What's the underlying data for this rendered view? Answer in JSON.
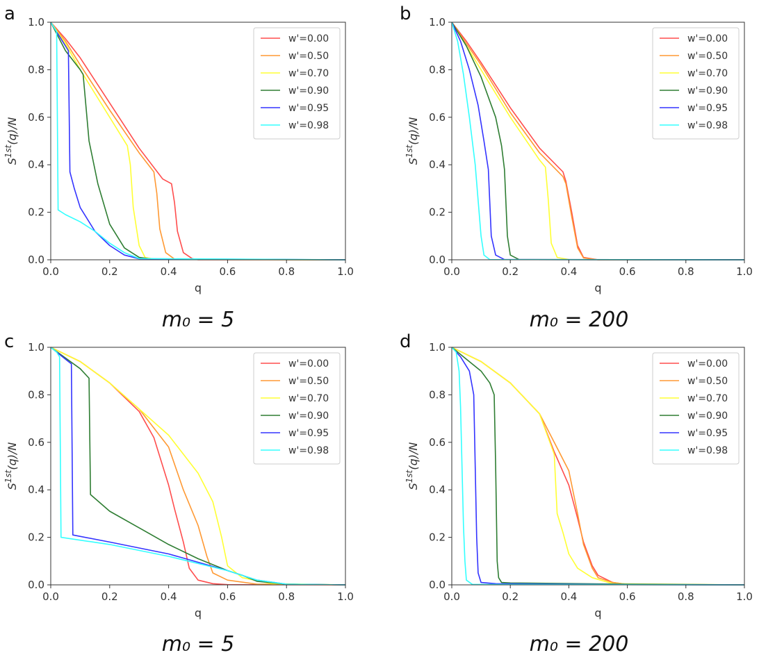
{
  "figure": {
    "legend_entries": [
      "w'=0.00",
      "w'=0.50",
      "w'=0.70",
      "w'=0.90",
      "w'=0.95",
      "w'=0.98"
    ],
    "series_colors": [
      "#ff4d4d",
      "#ff9933",
      "#ffff33",
      "#2e7d32",
      "#3333ff",
      "#33ffff"
    ]
  },
  "chart_data": [
    {
      "type": "line",
      "panel": "a",
      "caption": "m₀ = 5",
      "xlabel": "q",
      "ylabel": "S1st(q)/N",
      "xlim": [
        0,
        1.0
      ],
      "ylim": [
        0,
        1.0
      ],
      "xticks": [
        "0.0",
        "0.2",
        "0.4",
        "0.6",
        "0.8",
        "1.0"
      ],
      "yticks": [
        "0.0",
        "0.2",
        "0.4",
        "0.6",
        "0.8",
        "1.0"
      ],
      "legend_position": "top-right",
      "series": [
        {
          "name": "w'=0.00",
          "x": [
            0,
            0.05,
            0.1,
            0.2,
            0.3,
            0.38,
            0.41,
            0.42,
            0.43,
            0.45,
            0.48,
            0.5,
            1.0
          ],
          "y": [
            1.0,
            0.93,
            0.85,
            0.66,
            0.47,
            0.34,
            0.32,
            0.24,
            0.12,
            0.03,
            0.005,
            0,
            0
          ]
        },
        {
          "name": "w'=0.50",
          "x": [
            0,
            0.05,
            0.1,
            0.2,
            0.3,
            0.35,
            0.36,
            0.37,
            0.39,
            0.42,
            1.0
          ],
          "y": [
            1.0,
            0.92,
            0.82,
            0.63,
            0.45,
            0.37,
            0.28,
            0.13,
            0.03,
            0.003,
            0
          ]
        },
        {
          "name": "w'=0.70",
          "x": [
            0,
            0.05,
            0.1,
            0.2,
            0.26,
            0.27,
            0.28,
            0.3,
            0.32,
            0.36,
            1.0
          ],
          "y": [
            1.0,
            0.91,
            0.8,
            0.6,
            0.48,
            0.4,
            0.22,
            0.06,
            0.01,
            0.001,
            0
          ]
        },
        {
          "name": "w'=0.90",
          "x": [
            0,
            0.05,
            0.1,
            0.11,
            0.13,
            0.16,
            0.2,
            0.25,
            0.3,
            0.35,
            1.0
          ],
          "y": [
            1.0,
            0.88,
            0.8,
            0.78,
            0.5,
            0.32,
            0.15,
            0.05,
            0.01,
            0.002,
            0
          ]
        },
        {
          "name": "w'=0.95",
          "x": [
            0,
            0.05,
            0.06,
            0.065,
            0.08,
            0.1,
            0.15,
            0.2,
            0.25,
            0.3,
            1.0
          ],
          "y": [
            1.0,
            0.9,
            0.88,
            0.37,
            0.3,
            0.22,
            0.12,
            0.06,
            0.02,
            0.004,
            0
          ]
        },
        {
          "name": "w'=0.98",
          "x": [
            0,
            0.01,
            0.02,
            0.025,
            0.05,
            0.1,
            0.15,
            0.2,
            0.25,
            0.3,
            1.0
          ],
          "y": [
            1.0,
            0.98,
            0.96,
            0.21,
            0.19,
            0.16,
            0.12,
            0.07,
            0.03,
            0.005,
            0
          ]
        }
      ]
    },
    {
      "type": "line",
      "panel": "b",
      "caption": "m₀ = 200",
      "xlabel": "q",
      "ylabel": "S1st(q)/N",
      "xlim": [
        0,
        1.0
      ],
      "ylim": [
        0,
        1.0
      ],
      "xticks": [
        "0.0",
        "0.2",
        "0.4",
        "0.6",
        "0.8",
        "1.0"
      ],
      "yticks": [
        "0.0",
        "0.2",
        "0.4",
        "0.6",
        "0.8",
        "1.0"
      ],
      "legend_position": "top-right",
      "series": [
        {
          "name": "w'=0.00",
          "x": [
            0,
            0.05,
            0.1,
            0.2,
            0.3,
            0.38,
            0.39,
            0.41,
            0.43,
            0.45,
            0.5,
            1.0
          ],
          "y": [
            1.0,
            0.92,
            0.83,
            0.64,
            0.47,
            0.37,
            0.33,
            0.2,
            0.06,
            0.01,
            0,
            0
          ]
        },
        {
          "name": "w'=0.50",
          "x": [
            0,
            0.05,
            0.1,
            0.2,
            0.3,
            0.38,
            0.39,
            0.41,
            0.43,
            0.45,
            0.5,
            1.0
          ],
          "y": [
            1.0,
            0.91,
            0.82,
            0.62,
            0.45,
            0.35,
            0.32,
            0.18,
            0.05,
            0.008,
            0,
            0
          ]
        },
        {
          "name": "w'=0.70",
          "x": [
            0,
            0.05,
            0.1,
            0.2,
            0.3,
            0.32,
            0.33,
            0.34,
            0.36,
            0.4,
            1.0
          ],
          "y": [
            1.0,
            0.9,
            0.8,
            0.6,
            0.42,
            0.39,
            0.25,
            0.07,
            0.01,
            0.001,
            0
          ]
        },
        {
          "name": "w'=0.90",
          "x": [
            0,
            0.05,
            0.1,
            0.15,
            0.17,
            0.18,
            0.19,
            0.2,
            0.23,
            1.0
          ],
          "y": [
            1.0,
            0.9,
            0.77,
            0.6,
            0.48,
            0.38,
            0.1,
            0.02,
            0.001,
            0
          ]
        },
        {
          "name": "w'=0.95",
          "x": [
            0,
            0.03,
            0.06,
            0.09,
            0.11,
            0.125,
            0.135,
            0.15,
            0.18,
            1.0
          ],
          "y": [
            1.0,
            0.92,
            0.8,
            0.65,
            0.5,
            0.38,
            0.1,
            0.02,
            0.001,
            0
          ]
        },
        {
          "name": "w'=0.98",
          "x": [
            0,
            0.02,
            0.04,
            0.06,
            0.08,
            0.09,
            0.1,
            0.11,
            0.13,
            1.0
          ],
          "y": [
            1.0,
            0.92,
            0.78,
            0.6,
            0.4,
            0.25,
            0.1,
            0.02,
            0.001,
            0
          ]
        }
      ]
    },
    {
      "type": "line",
      "panel": "c",
      "caption": "m₀ = 5",
      "xlabel": "q",
      "ylabel": "S1st(q)/N",
      "xlim": [
        0,
        1.0
      ],
      "ylim": [
        0,
        1.0
      ],
      "xticks": [
        "0.0",
        "0.2",
        "0.4",
        "0.6",
        "0.8",
        "1.0"
      ],
      "yticks": [
        "0.0",
        "0.2",
        "0.4",
        "0.6",
        "0.8",
        "1.0"
      ],
      "legend_position": "top-right",
      "series": [
        {
          "name": "w'=0.00",
          "x": [
            0,
            0.1,
            0.2,
            0.3,
            0.35,
            0.4,
            0.42,
            0.45,
            0.47,
            0.5,
            0.55,
            0.6,
            1.0
          ],
          "y": [
            1.0,
            0.94,
            0.85,
            0.73,
            0.62,
            0.42,
            0.32,
            0.18,
            0.07,
            0.02,
            0.005,
            0.001,
            0
          ]
        },
        {
          "name": "w'=0.50",
          "x": [
            0,
            0.1,
            0.2,
            0.3,
            0.4,
            0.45,
            0.5,
            0.53,
            0.55,
            0.6,
            0.7,
            1.0
          ],
          "y": [
            1.0,
            0.94,
            0.85,
            0.74,
            0.58,
            0.4,
            0.25,
            0.12,
            0.05,
            0.02,
            0.003,
            0
          ]
        },
        {
          "name": "w'=0.70",
          "x": [
            0,
            0.1,
            0.2,
            0.3,
            0.4,
            0.5,
            0.55,
            0.58,
            0.6,
            0.65,
            0.75,
            1.0
          ],
          "y": [
            1.0,
            0.94,
            0.85,
            0.74,
            0.63,
            0.47,
            0.35,
            0.2,
            0.08,
            0.03,
            0.005,
            0
          ]
        },
        {
          "name": "w'=0.90",
          "x": [
            0,
            0.1,
            0.13,
            0.135,
            0.2,
            0.3,
            0.4,
            0.5,
            0.6,
            0.65,
            0.7,
            0.8,
            1.0
          ],
          "y": [
            1.0,
            0.91,
            0.87,
            0.38,
            0.31,
            0.24,
            0.17,
            0.11,
            0.06,
            0.04,
            0.015,
            0.003,
            0
          ]
        },
        {
          "name": "w'=0.95",
          "x": [
            0,
            0.05,
            0.07,
            0.075,
            0.2,
            0.4,
            0.6,
            0.7,
            0.8,
            1.0
          ],
          "y": [
            1.0,
            0.95,
            0.93,
            0.21,
            0.18,
            0.13,
            0.06,
            0.02,
            0.003,
            0
          ]
        },
        {
          "name": "w'=0.98",
          "x": [
            0,
            0.02,
            0.03,
            0.035,
            0.2,
            0.4,
            0.6,
            0.7,
            0.8,
            1.0
          ],
          "y": [
            1.0,
            0.98,
            0.96,
            0.2,
            0.17,
            0.12,
            0.06,
            0.02,
            0.003,
            0
          ]
        }
      ]
    },
    {
      "type": "line",
      "panel": "d",
      "caption": "m₀ = 200",
      "xlabel": "q",
      "ylabel": "S1st(q)/N",
      "xlim": [
        0,
        1.0
      ],
      "ylim": [
        0,
        1.0
      ],
      "xticks": [
        "0.0",
        "0.2",
        "0.4",
        "0.6",
        "0.8",
        "1.0"
      ],
      "yticks": [
        "0.0",
        "0.2",
        "0.4",
        "0.6",
        "0.8",
        "1.0"
      ],
      "legend_position": "top-right",
      "series": [
        {
          "name": "w'=0.00",
          "x": [
            0,
            0.1,
            0.2,
            0.3,
            0.35,
            0.4,
            0.43,
            0.45,
            0.48,
            0.5,
            0.55,
            0.6,
            1.0
          ],
          "y": [
            1.0,
            0.94,
            0.85,
            0.72,
            0.56,
            0.42,
            0.28,
            0.18,
            0.08,
            0.04,
            0.01,
            0.002,
            0
          ]
        },
        {
          "name": "w'=0.50",
          "x": [
            0,
            0.1,
            0.2,
            0.3,
            0.35,
            0.4,
            0.43,
            0.45,
            0.48,
            0.5,
            0.55,
            0.6,
            1.0
          ],
          "y": [
            1.0,
            0.94,
            0.85,
            0.72,
            0.6,
            0.48,
            0.3,
            0.17,
            0.07,
            0.03,
            0.01,
            0.002,
            0
          ]
        },
        {
          "name": "w'=0.70",
          "x": [
            0,
            0.1,
            0.2,
            0.3,
            0.35,
            0.36,
            0.38,
            0.4,
            0.43,
            0.48,
            0.55,
            1.0
          ],
          "y": [
            1.0,
            0.94,
            0.85,
            0.72,
            0.55,
            0.3,
            0.22,
            0.13,
            0.07,
            0.03,
            0.005,
            0
          ]
        },
        {
          "name": "w'=0.90",
          "x": [
            0,
            0.05,
            0.1,
            0.13,
            0.145,
            0.15,
            0.155,
            0.16,
            0.17,
            0.2,
            0.6,
            1.0
          ],
          "y": [
            1.0,
            0.95,
            0.9,
            0.85,
            0.8,
            0.5,
            0.1,
            0.03,
            0.01,
            0.008,
            0.003,
            0
          ]
        },
        {
          "name": "w'=0.95",
          "x": [
            0,
            0.03,
            0.06,
            0.075,
            0.08,
            0.085,
            0.09,
            0.1,
            0.15,
            0.6,
            1.0
          ],
          "y": [
            1.0,
            0.96,
            0.9,
            0.8,
            0.5,
            0.2,
            0.05,
            0.01,
            0.005,
            0.001,
            0
          ]
        },
        {
          "name": "w'=0.98",
          "x": [
            0,
            0.015,
            0.025,
            0.03,
            0.035,
            0.04,
            0.045,
            0.05,
            0.07,
            1.0
          ],
          "y": [
            1.0,
            0.98,
            0.9,
            0.75,
            0.5,
            0.25,
            0.1,
            0.02,
            0.002,
            0
          ]
        }
      ]
    }
  ]
}
